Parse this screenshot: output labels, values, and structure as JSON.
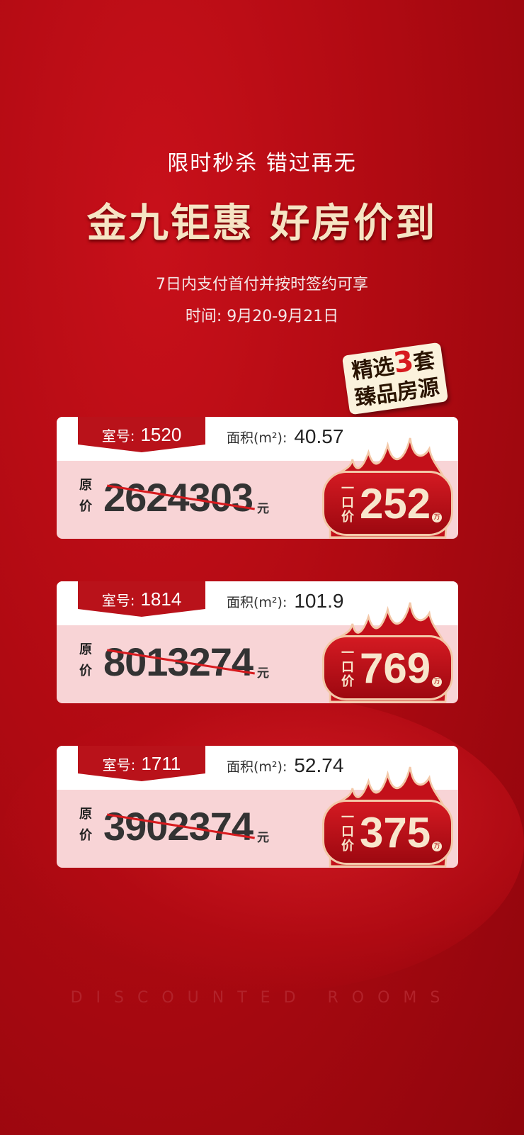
{
  "header": {
    "subtitle": "限时秒杀 错过再无",
    "title": "金九钜惠 好房价到",
    "condition": "7日内支付首付并按时签约可享",
    "time": "时间: 9月20-9月21日"
  },
  "sticker": {
    "line1a": "精选",
    "number": "3",
    "line1b": "套",
    "line2": "臻品房源"
  },
  "labels": {
    "room": "室号:",
    "area": "面积(m²):",
    "orig1": "原",
    "orig2": "价",
    "yuan": "元",
    "yk1": "一",
    "yk2": "口",
    "yk3": "价",
    "wan": "万"
  },
  "rooms": [
    {
      "room": "1520",
      "area": "40.57",
      "original_price": "2624303",
      "deal_price": "252"
    },
    {
      "room": "1814",
      "area": "101.9",
      "original_price": "8013274",
      "deal_price": "769"
    },
    {
      "room": "1711",
      "area": "52.74",
      "original_price": "3902374",
      "deal_price": "375"
    }
  ],
  "footer": "DISCOUNTED ROOMS"
}
